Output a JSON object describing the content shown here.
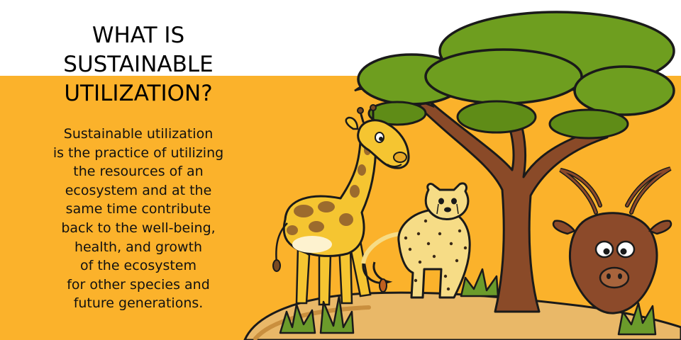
{
  "colors": {
    "background": "#ffffff",
    "banner": "#fbb22b",
    "text": "#000000",
    "tree_canopy": "#6e9e1f",
    "tree_trunk": "#8a4a28",
    "giraffe": "#f5c531",
    "giraffe_spots": "#9c6b2d",
    "cheetah": "#f6dc86",
    "kudu": "#8c4a2a",
    "ground": "#e9b868",
    "grass": "#6b9b2b"
  },
  "title": {
    "lines": [
      "WHAT IS",
      "SUSTAINABLE",
      "UTILIZATION?"
    ]
  },
  "body": {
    "lines": [
      "Sustainable utilization",
      "is the practice of utilizing",
      "the resources of an",
      "ecosystem and at the",
      "same time contribute",
      "back to the well-being,",
      "health, and growth",
      "of the ecosystem",
      "for other species and",
      "future generations."
    ]
  },
  "illustration": {
    "elements": [
      "acacia-tree-icon",
      "giraffe-icon",
      "cheetah-icon",
      "kudu-icon",
      "grass-tuft-icon",
      "ground-mound"
    ]
  }
}
